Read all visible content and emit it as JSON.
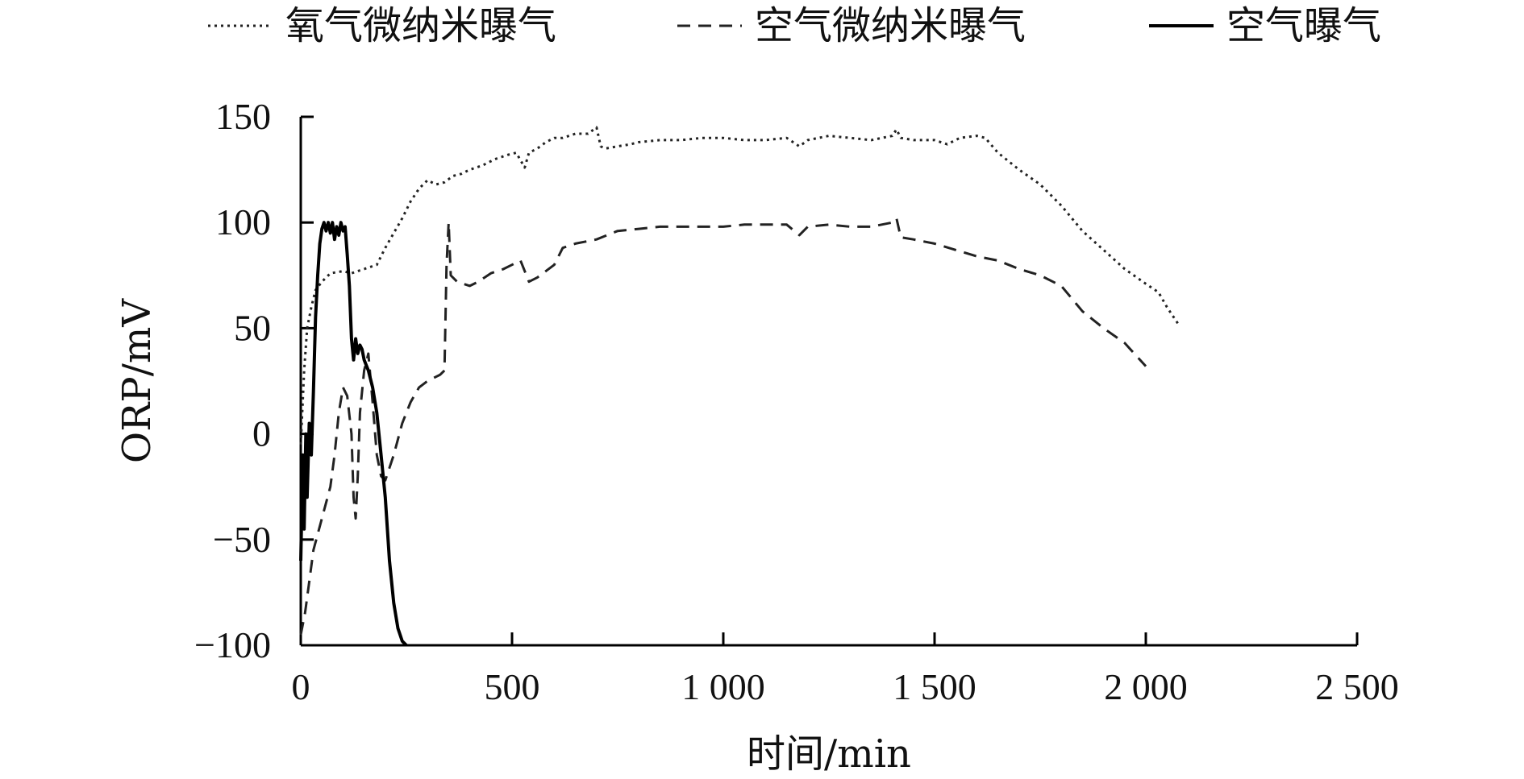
{
  "chart_data": {
    "type": "line",
    "title": "",
    "xlabel": "时间/min",
    "ylabel": "ORP/mV",
    "xlim": [
      0,
      2500
    ],
    "ylim": [
      -100,
      150
    ],
    "x_ticks": [
      0,
      500,
      1000,
      1500,
      2000,
      2500
    ],
    "x_tick_labels": [
      "0",
      "500",
      "1 000",
      "1 500",
      "2 000",
      "2 500"
    ],
    "y_ticks": [
      -100,
      -50,
      0,
      50,
      100,
      150
    ],
    "y_tick_labels": [
      "−100",
      "−50",
      "0",
      "50",
      "100",
      "150"
    ],
    "grid": false,
    "legend_position": "top",
    "series": [
      {
        "name": "氧气微纳米曝气",
        "style": "dotted",
        "color": "#222222",
        "points": [
          [
            0,
            -5
          ],
          [
            8,
            30
          ],
          [
            15,
            50
          ],
          [
            25,
            60
          ],
          [
            35,
            68
          ],
          [
            50,
            72
          ],
          [
            70,
            76
          ],
          [
            100,
            77
          ],
          [
            120,
            76
          ],
          [
            150,
            78
          ],
          [
            180,
            80
          ],
          [
            200,
            88
          ],
          [
            220,
            95
          ],
          [
            240,
            102
          ],
          [
            260,
            110
          ],
          [
            280,
            116
          ],
          [
            300,
            120
          ],
          [
            320,
            118
          ],
          [
            340,
            119
          ],
          [
            360,
            122
          ],
          [
            380,
            123
          ],
          [
            400,
            125
          ],
          [
            430,
            127
          ],
          [
            460,
            130
          ],
          [
            490,
            132
          ],
          [
            510,
            133
          ],
          [
            530,
            126
          ],
          [
            540,
            133
          ],
          [
            560,
            135
          ],
          [
            580,
            138
          ],
          [
            600,
            140
          ],
          [
            620,
            140
          ],
          [
            650,
            142
          ],
          [
            680,
            142
          ],
          [
            700,
            145
          ],
          [
            710,
            136
          ],
          [
            720,
            135
          ],
          [
            750,
            136
          ],
          [
            780,
            137
          ],
          [
            800,
            138
          ],
          [
            850,
            139
          ],
          [
            900,
            139
          ],
          [
            950,
            140
          ],
          [
            1000,
            140
          ],
          [
            1050,
            139
          ],
          [
            1100,
            139
          ],
          [
            1150,
            140
          ],
          [
            1180,
            136
          ],
          [
            1200,
            139
          ],
          [
            1250,
            141
          ],
          [
            1300,
            140
          ],
          [
            1350,
            139
          ],
          [
            1400,
            141
          ],
          [
            1410,
            144
          ],
          [
            1420,
            140
          ],
          [
            1450,
            139
          ],
          [
            1500,
            139
          ],
          [
            1530,
            137
          ],
          [
            1560,
            140
          ],
          [
            1600,
            141
          ],
          [
            1620,
            140
          ],
          [
            1650,
            133
          ],
          [
            1700,
            125
          ],
          [
            1750,
            118
          ],
          [
            1800,
            108
          ],
          [
            1850,
            96
          ],
          [
            1900,
            87
          ],
          [
            1950,
            78
          ],
          [
            2000,
            71
          ],
          [
            2030,
            67
          ],
          [
            2050,
            60
          ],
          [
            2080,
            51
          ]
        ]
      },
      {
        "name": "空气微纳米曝气",
        "style": "dashed",
        "color": "#222222",
        "points": [
          [
            0,
            -95
          ],
          [
            10,
            -85
          ],
          [
            20,
            -70
          ],
          [
            30,
            -55
          ],
          [
            50,
            -40
          ],
          [
            70,
            -25
          ],
          [
            80,
            -10
          ],
          [
            90,
            10
          ],
          [
            100,
            22
          ],
          [
            110,
            18
          ],
          [
            120,
            0
          ],
          [
            125,
            -30
          ],
          [
            130,
            -40
          ],
          [
            135,
            -20
          ],
          [
            140,
            10
          ],
          [
            150,
            30
          ],
          [
            160,
            38
          ],
          [
            170,
            15
          ],
          [
            180,
            -10
          ],
          [
            190,
            -20
          ],
          [
            200,
            -22
          ],
          [
            220,
            -10
          ],
          [
            240,
            5
          ],
          [
            260,
            15
          ],
          [
            280,
            22
          ],
          [
            300,
            25
          ],
          [
            330,
            28
          ],
          [
            340,
            30
          ],
          [
            345,
            80
          ],
          [
            350,
            100
          ],
          [
            355,
            75
          ],
          [
            370,
            72
          ],
          [
            400,
            70
          ],
          [
            420,
            72
          ],
          [
            450,
            76
          ],
          [
            480,
            78
          ],
          [
            500,
            80
          ],
          [
            520,
            82
          ],
          [
            540,
            72
          ],
          [
            560,
            74
          ],
          [
            580,
            77
          ],
          [
            600,
            80
          ],
          [
            620,
            88
          ],
          [
            650,
            90
          ],
          [
            700,
            92
          ],
          [
            750,
            96
          ],
          [
            800,
            97
          ],
          [
            850,
            98
          ],
          [
            900,
            98
          ],
          [
            950,
            98
          ],
          [
            1000,
            98
          ],
          [
            1050,
            99
          ],
          [
            1100,
            99
          ],
          [
            1150,
            99
          ],
          [
            1180,
            94
          ],
          [
            1200,
            98
          ],
          [
            1250,
            99
          ],
          [
            1300,
            98
          ],
          [
            1350,
            98
          ],
          [
            1400,
            100
          ],
          [
            1410,
            102
          ],
          [
            1420,
            93
          ],
          [
            1450,
            92
          ],
          [
            1500,
            90
          ],
          [
            1550,
            87
          ],
          [
            1600,
            84
          ],
          [
            1650,
            82
          ],
          [
            1700,
            78
          ],
          [
            1750,
            75
          ],
          [
            1800,
            70
          ],
          [
            1850,
            58
          ],
          [
            1900,
            50
          ],
          [
            1950,
            43
          ],
          [
            2000,
            32
          ]
        ]
      },
      {
        "name": "空气曝气",
        "style": "solid",
        "color": "#000000",
        "points": [
          [
            0,
            -60
          ],
          [
            5,
            -10
          ],
          [
            8,
            -45
          ],
          [
            12,
            0
          ],
          [
            15,
            -30
          ],
          [
            20,
            5
          ],
          [
            25,
            -10
          ],
          [
            30,
            20
          ],
          [
            35,
            55
          ],
          [
            40,
            75
          ],
          [
            45,
            90
          ],
          [
            50,
            97
          ],
          [
            55,
            100
          ],
          [
            60,
            96
          ],
          [
            65,
            100
          ],
          [
            70,
            95
          ],
          [
            75,
            100
          ],
          [
            80,
            92
          ],
          [
            85,
            98
          ],
          [
            90,
            94
          ],
          [
            95,
            100
          ],
          [
            100,
            96
          ],
          [
            105,
            98
          ],
          [
            110,
            85
          ],
          [
            115,
            70
          ],
          [
            120,
            45
          ],
          [
            125,
            35
          ],
          [
            130,
            45
          ],
          [
            135,
            38
          ],
          [
            140,
            42
          ],
          [
            145,
            40
          ],
          [
            150,
            35
          ],
          [
            160,
            30
          ],
          [
            170,
            22
          ],
          [
            180,
            10
          ],
          [
            190,
            -10
          ],
          [
            200,
            -30
          ],
          [
            210,
            -60
          ],
          [
            220,
            -80
          ],
          [
            230,
            -92
          ],
          [
            240,
            -98
          ],
          [
            250,
            -100
          ]
        ]
      }
    ]
  }
}
